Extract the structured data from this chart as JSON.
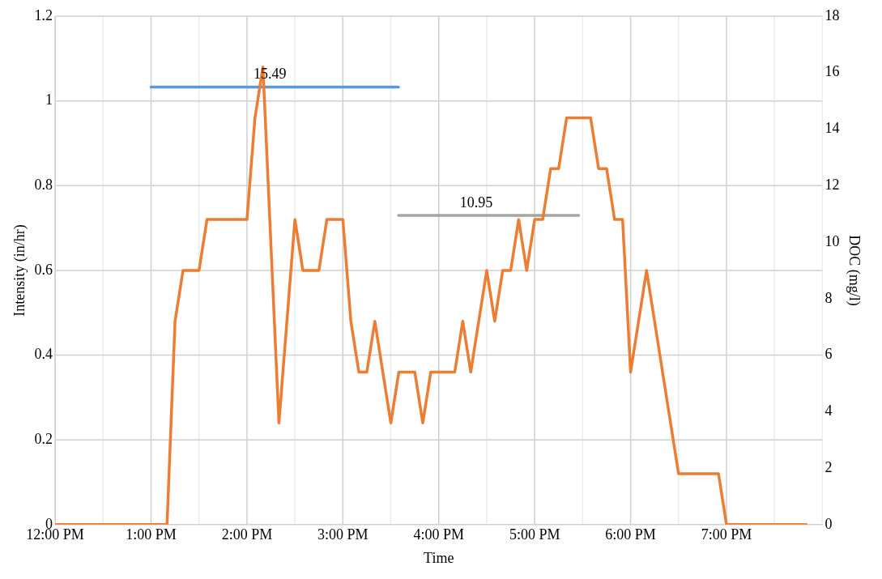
{
  "chart_data": {
    "type": "line",
    "xlabel": "Time",
    "ylabel": "Intensity (in/hr)",
    "y2label": "DOC (mg/l)",
    "xlim": [
      12,
      20
    ],
    "xticks": [
      {
        "value": 12,
        "label": "12:00 PM"
      },
      {
        "value": 12.5,
        "label": null
      },
      {
        "value": 13,
        "label": "1:00 PM"
      },
      {
        "value": 13.5,
        "label": null
      },
      {
        "value": 14,
        "label": "2:00 PM"
      },
      {
        "value": 14.5,
        "label": null
      },
      {
        "value": 15,
        "label": "3:00 PM"
      },
      {
        "value": 15.5,
        "label": null
      },
      {
        "value": 16,
        "label": "4:00 PM"
      },
      {
        "value": 16.5,
        "label": null
      },
      {
        "value": 17,
        "label": "5:00 PM"
      },
      {
        "value": 17.5,
        "label": null
      },
      {
        "value": 18,
        "label": "6:00 PM"
      },
      {
        "value": 18.5,
        "label": null
      },
      {
        "value": 19,
        "label": "7:00 PM"
      },
      {
        "value": 19.5,
        "label": null
      },
      {
        "value": 20,
        "label": null
      }
    ],
    "ylim": [
      0,
      1.2
    ],
    "yticks": [
      0,
      0.2,
      0.4,
      0.6,
      0.8,
      1,
      1.2
    ],
    "y2lim": [
      0,
      18
    ],
    "y2ticks": [
      0,
      2,
      4,
      6,
      8,
      10,
      12,
      14,
      16,
      18
    ],
    "grid": true,
    "legend": false,
    "marker": "none",
    "line_style": "solid",
    "series": [
      {
        "color": "#ed7d31",
        "x": [
          12,
          13.1667,
          13.25,
          13.3333,
          13.5,
          13.5833,
          14,
          14.0833,
          14.1667,
          14.3333,
          14.5,
          14.5833,
          14.75,
          14.8333,
          15,
          15.0833,
          15.1667,
          15.25,
          15.3333,
          15.5,
          15.5833,
          15.75,
          15.8333,
          15.9167,
          16.1667,
          16.25,
          16.3333,
          16.5,
          16.5833,
          16.6667,
          16.75,
          16.8333,
          16.9167,
          17,
          17.0833,
          17.1667,
          17.25,
          17.3333,
          17.5833,
          17.6667,
          17.75,
          17.8333,
          17.9167,
          18,
          18.1667,
          18.25,
          18.3333,
          18.4167,
          18.5,
          18.9167,
          19,
          19.8333
        ],
        "values": [
          0,
          0,
          0.48,
          0.6,
          0.6,
          0.72,
          0.72,
          0.96,
          1.08,
          0.24,
          0.72,
          0.6,
          0.6,
          0.72,
          0.72,
          0.48,
          0.36,
          0.36,
          0.48,
          0.24,
          0.36,
          0.36,
          0.24,
          0.36,
          0.36,
          0.48,
          0.36,
          0.6,
          0.48,
          0.6,
          0.6,
          0.72,
          0.6,
          0.72,
          0.72,
          0.84,
          0.84,
          0.96,
          0.96,
          0.84,
          0.84,
          0.72,
          0.72,
          0.36,
          0.6,
          0.48,
          0.36,
          0.24,
          0.12,
          0.12,
          0,
          0
        ]
      },
      {
        "color": "#5b9bd5",
        "axis": "y2",
        "x": [
          13,
          14.24,
          15.58
        ],
        "values": [
          15.49,
          15.49,
          15.49
        ],
        "value_labels": [
          null,
          "15.49",
          null
        ]
      },
      {
        "color": "#a5a5a5",
        "axis": "y2",
        "x": [
          15.58,
          16.39,
          17.46
        ],
        "values": [
          10.95,
          10.95,
          10.95
        ],
        "value_labels": [
          null,
          "10.95",
          null
        ]
      }
    ]
  }
}
